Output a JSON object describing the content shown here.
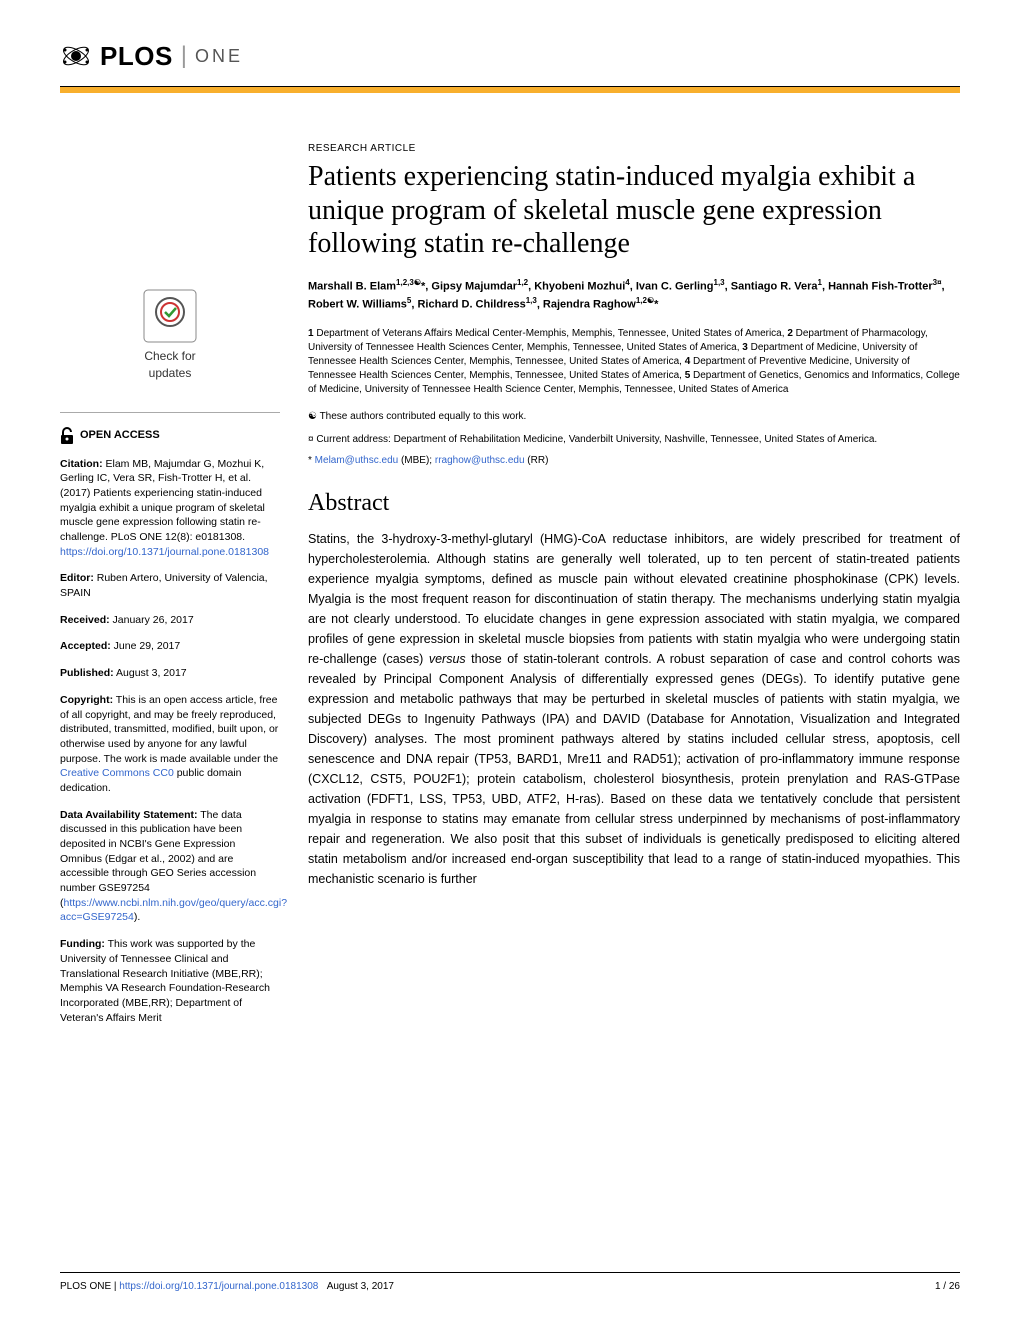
{
  "journal": {
    "logo_main": "PLOS",
    "logo_sub": "ONE"
  },
  "article": {
    "type": "RESEARCH ARTICLE",
    "title": "Patients experiencing statin-induced myalgia exhibit a unique program of skeletal muscle gene expression following statin re-challenge",
    "authors_html": "Marshall B. Elam<sup>1,2,3☯</sup>*, Gipsy Majumdar<sup>1,2</sup>, Khyobeni Mozhui<sup>4</sup>, Ivan C. Gerling<sup>1,3</sup>, Santiago R. Vera<sup>1</sup>, Hannah Fish-Trotter<sup>3¤</sup>, Robert W. Williams<sup>5</sup>, Richard D. Childress<sup>1,3</sup>, Rajendra Raghow<sup>1,2☯</sup>*",
    "affiliations": "1 Department of Veterans Affairs Medical Center-Memphis, Memphis, Tennessee, United States of America, 2 Department of Pharmacology, University of Tennessee Health Sciences Center, Memphis, Tennessee, United States of America, 3 Department of Medicine, University of Tennessee Health Sciences Center, Memphis, Tennessee, United States of America, 4 Department of Preventive Medicine, University of Tennessee Health Sciences Center, Memphis, Tennessee, United States of America, 5 Department of Genetics, Genomics and Informatics, College of Medicine, University of Tennessee Health Science Center, Memphis, Tennessee, United States of America",
    "note_equal": "☯ These authors contributed equally to this work.",
    "note_current": "¤ Current address: Department of Rehabilitation Medicine, Vanderbilt University, Nashville, Tennessee, United States of America.",
    "email_prefix": "* ",
    "email1": "Melam@uthsc.edu",
    "email1_suffix": " (MBE); ",
    "email2": "rraghow@uthsc.edu",
    "email2_suffix": " (RR)"
  },
  "abstract": {
    "heading": "Abstract",
    "text": "Statins, the 3-hydroxy-3-methyl-glutaryl (HMG)-CoA reductase inhibitors, are widely prescribed for treatment of hypercholesterolemia. Although statins are generally well tolerated, up to ten percent of statin-treated patients experience myalgia symptoms, defined as muscle pain without elevated creatinine phosphokinase (CPK) levels. Myalgia is the most frequent reason for discontinuation of statin therapy. The mechanisms underlying statin myalgia are not clearly understood. To elucidate changes in gene expression associated with statin myalgia, we compared profiles of gene expression in skeletal muscle biopsies from patients with statin myalgia who were undergoing statin re-challenge (cases) versus those of statin-tolerant controls. A robust separation of case and control cohorts was revealed by Principal Component Analysis of differentially expressed genes (DEGs). To identify putative gene expression and metabolic pathways that may be perturbed in skeletal muscles of patients with statin myalgia, we subjected DEGs to Ingenuity Pathways (IPA) and DAVID (Database for Annotation, Visualization and Integrated Discovery) analyses. The most prominent pathways altered by statins included cellular stress, apoptosis, cell senescence and DNA repair (TP53, BARD1, Mre11 and RAD51); activation of pro-inflammatory immune response (CXCL12, CST5, POU2F1); protein catabolism, cholesterol biosynthesis, protein prenylation and RAS-GTPase activation (FDFT1, LSS, TP53, UBD, ATF2, H-ras). Based on these data we tentatively conclude that persistent myalgia in response to statins may emanate from cellular stress underpinned by mechanisms of post-inflammatory repair and regeneration. We also posit that this subset of individuals is genetically predisposed to eliciting altered statin metabolism and/or increased end-organ susceptibility that lead to a range of statin-induced myopathies. This mechanistic scenario is further"
  },
  "sidebar": {
    "check_updates": "Check for",
    "check_updates2": "updates",
    "open_access": "OPEN ACCESS",
    "citation_label": "Citation:",
    "citation_text": " Elam MB, Majumdar G, Mozhui K, Gerling IC, Vera SR, Fish-Trotter H, et al. (2017) Patients experiencing statin-induced myalgia exhibit a unique program of skeletal muscle gene expression following statin re-challenge. PLoS ONE 12(8): e0181308. ",
    "citation_link": "https://doi.org/10.1371/journal.pone.0181308",
    "editor_label": "Editor:",
    "editor_text": " Ruben Artero, University of Valencia, SPAIN",
    "received_label": "Received:",
    "received_text": " January 26, 2017",
    "accepted_label": "Accepted:",
    "accepted_text": " June 29, 2017",
    "published_label": "Published:",
    "published_text": " August 3, 2017",
    "copyright_label": "Copyright:",
    "copyright_text": " This is an open access article, free of all copyright, and may be freely reproduced, distributed, transmitted, modified, built upon, or otherwise used by anyone for any lawful purpose. The work is made available under the ",
    "copyright_link": "Creative Commons CC0",
    "copyright_suffix": " public domain dedication.",
    "data_label": "Data Availability Statement:",
    "data_text": " The data discussed in this publication have been deposited in NCBI's Gene Expression Omnibus (Edgar et al., 2002) and are accessible through GEO Series accession number GSE97254 (",
    "data_link": "https://www.ncbi.nlm.nih.gov/geo/query/acc.cgi?acc=GSE97254",
    "data_suffix": ").",
    "funding_label": "Funding:",
    "funding_text": " This work was supported by the University of Tennessee Clinical and Translational Research Initiative (MBE,RR); Memphis VA Research Foundation-Research Incorporated (MBE,RR); Department of Veteran's Affairs Merit"
  },
  "footer": {
    "journal": "PLOS ONE | ",
    "doi": "https://doi.org/10.1371/journal.pone.0181308",
    "date": "August 3, 2017",
    "page": "1 / 26"
  },
  "colors": {
    "accent": "#f8af2d",
    "link": "#3366cc"
  }
}
